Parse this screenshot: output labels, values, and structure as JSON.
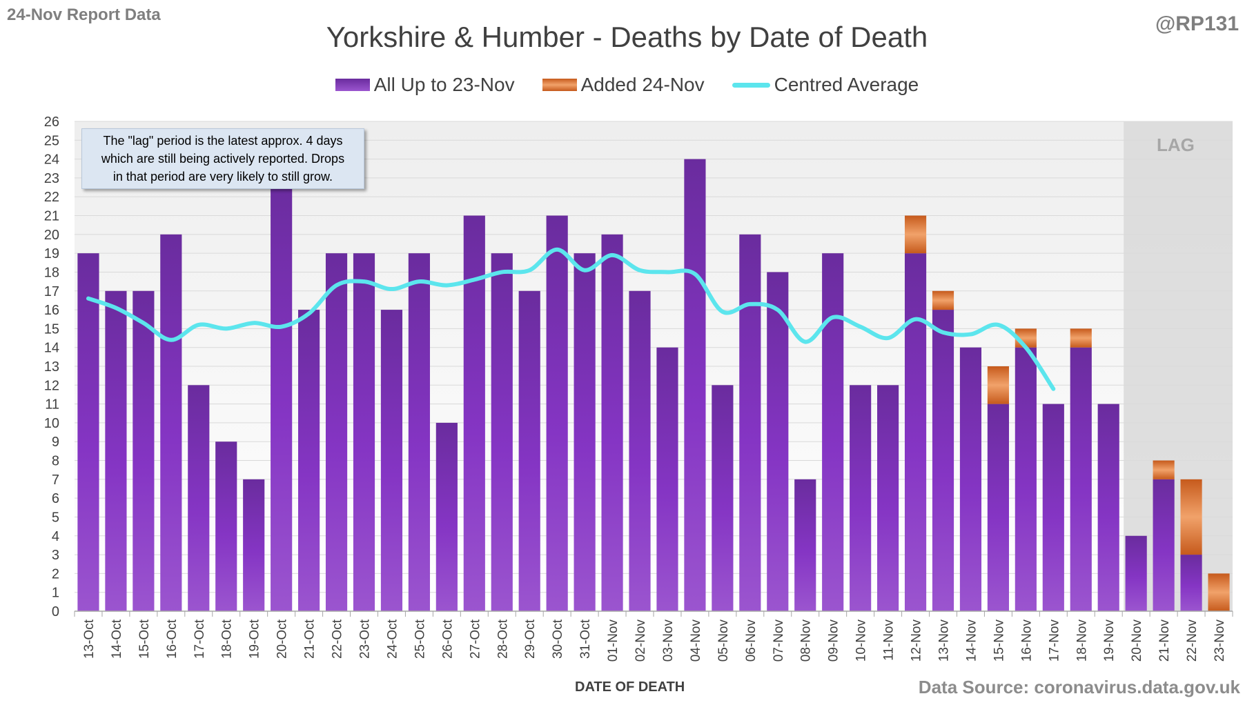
{
  "header": {
    "report_label": "24-Nov Report Data",
    "author": "@RP131",
    "title": "Yorkshire & Humber - Deaths by Date of Death"
  },
  "legend": {
    "items": [
      {
        "label": "All Up to 23-Nov",
        "color": "#7030a0"
      },
      {
        "label": "Added 24-Nov",
        "color": "#e07a30"
      },
      {
        "label": "Centred Average",
        "color": "#5ce5ed"
      }
    ]
  },
  "note": {
    "lines": [
      "The \"lag\" period is the latest approx. 4 days",
      "which are still being actively reported.  Drops",
      "in that period are very likely to still grow."
    ]
  },
  "lag_label": "LAG",
  "footer": {
    "source": "Data Source: coronavirus.data.gov.uk"
  },
  "chart_data": {
    "type": "bar",
    "stacked": true,
    "title": "Yorkshire & Humber - Deaths by Date of Death",
    "xlabel": "DATE OF DEATH",
    "ylabel": "",
    "ylim": [
      0,
      26
    ],
    "y_ticks": [
      0,
      1,
      2,
      3,
      4,
      5,
      6,
      7,
      8,
      9,
      10,
      11,
      12,
      13,
      14,
      15,
      16,
      17,
      18,
      19,
      20,
      21,
      22,
      23,
      24,
      25,
      26
    ],
    "grid": true,
    "legend_position": "top",
    "categories": [
      "13-Oct",
      "14-Oct",
      "15-Oct",
      "16-Oct",
      "17-Oct",
      "18-Oct",
      "19-Oct",
      "20-Oct",
      "21-Oct",
      "22-Oct",
      "23-Oct",
      "24-Oct",
      "25-Oct",
      "26-Oct",
      "27-Oct",
      "28-Oct",
      "29-Oct",
      "30-Oct",
      "31-Oct",
      "01-Nov",
      "02-Nov",
      "03-Nov",
      "04-Nov",
      "05-Nov",
      "06-Nov",
      "07-Nov",
      "08-Nov",
      "09-Nov",
      "10-Nov",
      "11-Nov",
      "12-Nov",
      "13-Nov",
      "14-Nov",
      "15-Nov",
      "16-Nov",
      "17-Nov",
      "18-Nov",
      "19-Nov",
      "20-Nov",
      "21-Nov",
      "22-Nov",
      "23-Nov"
    ],
    "series": [
      {
        "name": "All Up to 23-Nov",
        "color": "#7030a0",
        "values": [
          19,
          17,
          17,
          20,
          12,
          9,
          7,
          23,
          16,
          19,
          19,
          16,
          19,
          10,
          21,
          19,
          17,
          21,
          19,
          20,
          17,
          14,
          24,
          12,
          20,
          18,
          7,
          19,
          12,
          12,
          19,
          16,
          14,
          11,
          14,
          11,
          14,
          11,
          4,
          7,
          3,
          0
        ]
      },
      {
        "name": "Added 24-Nov",
        "color": "#e07a30",
        "values": [
          0,
          0,
          0,
          0,
          0,
          0,
          0,
          0,
          0,
          0,
          0,
          0,
          0,
          0,
          0,
          0,
          0,
          0,
          0,
          0,
          0,
          0,
          0,
          0,
          0,
          0,
          0,
          0,
          0,
          0,
          2,
          1,
          0,
          2,
          1,
          0,
          1,
          0,
          0,
          1,
          4,
          2
        ]
      },
      {
        "name": "Centred Average",
        "type": "line",
        "color": "#5ce5ed",
        "values": [
          16.6,
          16.1,
          15.3,
          14.4,
          15.2,
          15.0,
          15.3,
          15.1,
          15.8,
          17.3,
          17.5,
          17.1,
          17.5,
          17.3,
          17.6,
          18.0,
          18.1,
          19.2,
          18.1,
          18.9,
          18.1,
          18.0,
          17.9,
          15.9,
          16.3,
          16.0,
          14.3,
          15.6,
          15.1,
          14.5,
          15.5,
          14.8,
          14.7,
          15.2,
          14.0,
          11.8,
          null,
          null,
          null,
          null,
          null,
          null
        ]
      }
    ],
    "lag_categories": [
      "20-Nov",
      "21-Nov",
      "22-Nov",
      "23-Nov"
    ]
  }
}
